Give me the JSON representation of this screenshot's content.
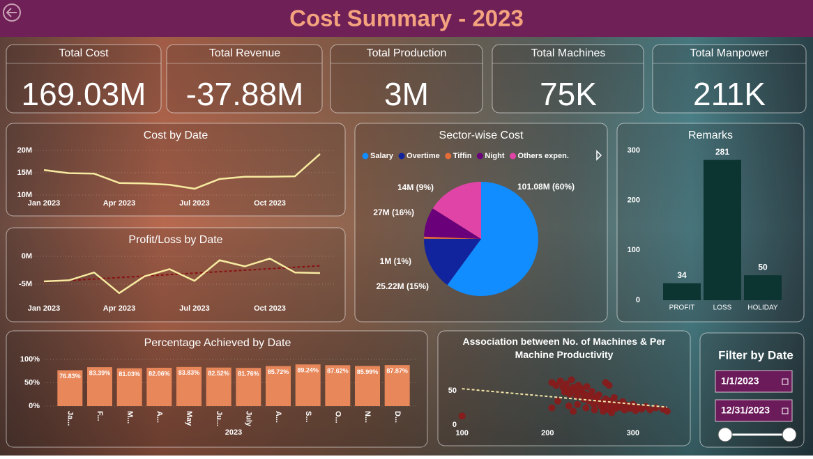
{
  "header": {
    "title": "Cost Summary - 2023"
  },
  "kpis": [
    {
      "label": "Total Cost",
      "value": "169.03M"
    },
    {
      "label": "Total Revenue",
      "value": "-37.88M"
    },
    {
      "label": "Total Production",
      "value": "3M"
    },
    {
      "label": "Total Machines",
      "value": "75K"
    },
    {
      "label": "Total Manpower",
      "value": "211K"
    }
  ],
  "chart_data": [
    {
      "type": "line",
      "title": "Cost by Date",
      "categories": [
        "Jan 2023",
        null,
        null,
        "Apr 2023",
        null,
        null,
        "Jul 2023",
        null,
        null,
        "Oct 2023",
        null,
        null
      ],
      "values": [
        15.6,
        14.9,
        14.8,
        12.7,
        12.6,
        12.3,
        11.4,
        13.6,
        14.1,
        14.1,
        14.2,
        19.2
      ],
      "color": "#f7eba1",
      "ylim": [
        10,
        20
      ],
      "yticks": [
        {
          "value": 10,
          "label": "10M"
        },
        {
          "value": 15,
          "label": "15M"
        },
        {
          "value": 20,
          "label": "20M"
        }
      ],
      "grid": true
    },
    {
      "type": "line",
      "title": "Profit/Loss by Date",
      "categories": [
        "Jan 2023",
        null,
        null,
        "Apr 2023",
        null,
        null,
        "Jul 2023",
        null,
        null,
        "Oct 2023",
        null,
        null
      ],
      "values": [
        -4.5,
        -4.3,
        -2.9,
        -6.6,
        -3.6,
        -2.3,
        -4.4,
        -0.7,
        -1.8,
        -0.4,
        -2.9,
        -3.0
      ],
      "color": "#f7eba1",
      "ylim": [
        -7.5,
        0.5
      ],
      "yticks": [
        {
          "value": 0,
          "label": "0M"
        },
        {
          "value": -5,
          "label": "-5M"
        }
      ],
      "trendline": {
        "values": [
          -4.6,
          -1.7
        ],
        "color": "#8a0f12"
      },
      "grid": true
    },
    {
      "type": "pie",
      "title": "Sector-wise Cost",
      "categories": [
        "Salary",
        "Overtime",
        "Tiffin",
        "Night",
        "Others  expen."
      ],
      "values": [
        101.08,
        25.22,
        1,
        14,
        27
      ],
      "value_labels": [
        "101.08M (60%)",
        "25.22M (15%)",
        "1M (1%)",
        "14M (9%)",
        "27M (16%)"
      ],
      "colors": [
        "#118dff",
        "#12239e",
        "#e66c37",
        "#6b007b",
        "#e044a7"
      ]
    },
    {
      "type": "bar",
      "title": "Remarks",
      "categories": [
        "PROFIT",
        "LOSS",
        "HOLIDAY"
      ],
      "values": [
        34,
        281,
        50
      ],
      "color": "#0c3431",
      "ylim": [
        0,
        300
      ],
      "yticks": [
        0,
        100,
        200,
        300
      ],
      "grid": false
    },
    {
      "type": "bar",
      "title": "Percentage Achieved by Date",
      "x_label": "2023",
      "categories": [
        "Ja...",
        "F...",
        "M...",
        "A...",
        "May",
        "Ju...",
        "July",
        "A...",
        "S...",
        "O...",
        "N...",
        "D..."
      ],
      "values": [
        76.83,
        83.39,
        81.03,
        82.06,
        83.83,
        82.52,
        81.76,
        85.72,
        89.24,
        87.62,
        85.99,
        87.87
      ],
      "value_labels": [
        "76.83%",
        "83.39%",
        "81.03%",
        "82.06%",
        "83.83%",
        "82.52%",
        "81.76%",
        "85.72%",
        "89.24%",
        "87.62%",
        "85.99%",
        "87.87%"
      ],
      "color": "#e8875a",
      "ylim": [
        0,
        100
      ],
      "yticks": [
        {
          "value": 0,
          "label": "0%"
        },
        {
          "value": 50,
          "label": "50%"
        },
        {
          "value": 100,
          "label": "100%"
        }
      ],
      "grid": true
    },
    {
      "type": "scatter",
      "title": "Association between No. of Machines & Per Machine Productivity",
      "x": [
        100,
        205,
        210,
        215,
        218,
        220,
        222,
        224,
        226,
        228,
        230,
        232,
        234,
        236,
        238,
        240,
        242,
        244,
        246,
        248,
        250,
        252,
        254,
        256,
        258,
        260,
        262,
        264,
        266,
        268,
        270,
        272,
        274,
        276,
        278,
        280,
        282,
        285,
        288,
        290,
        293,
        296,
        300,
        303,
        306,
        310,
        315,
        320,
        327,
        335,
        340,
        212,
        225,
        235,
        245,
        255,
        265,
        275,
        205,
        230,
        268,
        272
      ],
      "values": [
        13,
        62,
        58,
        64,
        55,
        48,
        60,
        52,
        45,
        66,
        55,
        50,
        42,
        58,
        47,
        53,
        38,
        45,
        56,
        35,
        42,
        49,
        30,
        40,
        36,
        44,
        28,
        33,
        25,
        38,
        30,
        22,
        35,
        27,
        40,
        24,
        31,
        26,
        34,
        22,
        29,
        24,
        30,
        21,
        26,
        23,
        27,
        22,
        25,
        23,
        20,
        35,
        28,
        30,
        25,
        22,
        20,
        18,
        25,
        20,
        62,
        58
      ],
      "color": "#8b1a1a",
      "xlim": [
        97,
        345
      ],
      "ylim": [
        -3,
        75
      ],
      "xticks": [
        100,
        200,
        300
      ],
      "yticks": [
        0,
        50
      ],
      "trendline": {
        "x": [
          100,
          340
        ],
        "y": [
          53,
          26
        ],
        "color": "#f5e6a8"
      }
    }
  ],
  "filter": {
    "title": "Filter by Date",
    "start": "1/1/2023",
    "end": "12/31/2023"
  }
}
